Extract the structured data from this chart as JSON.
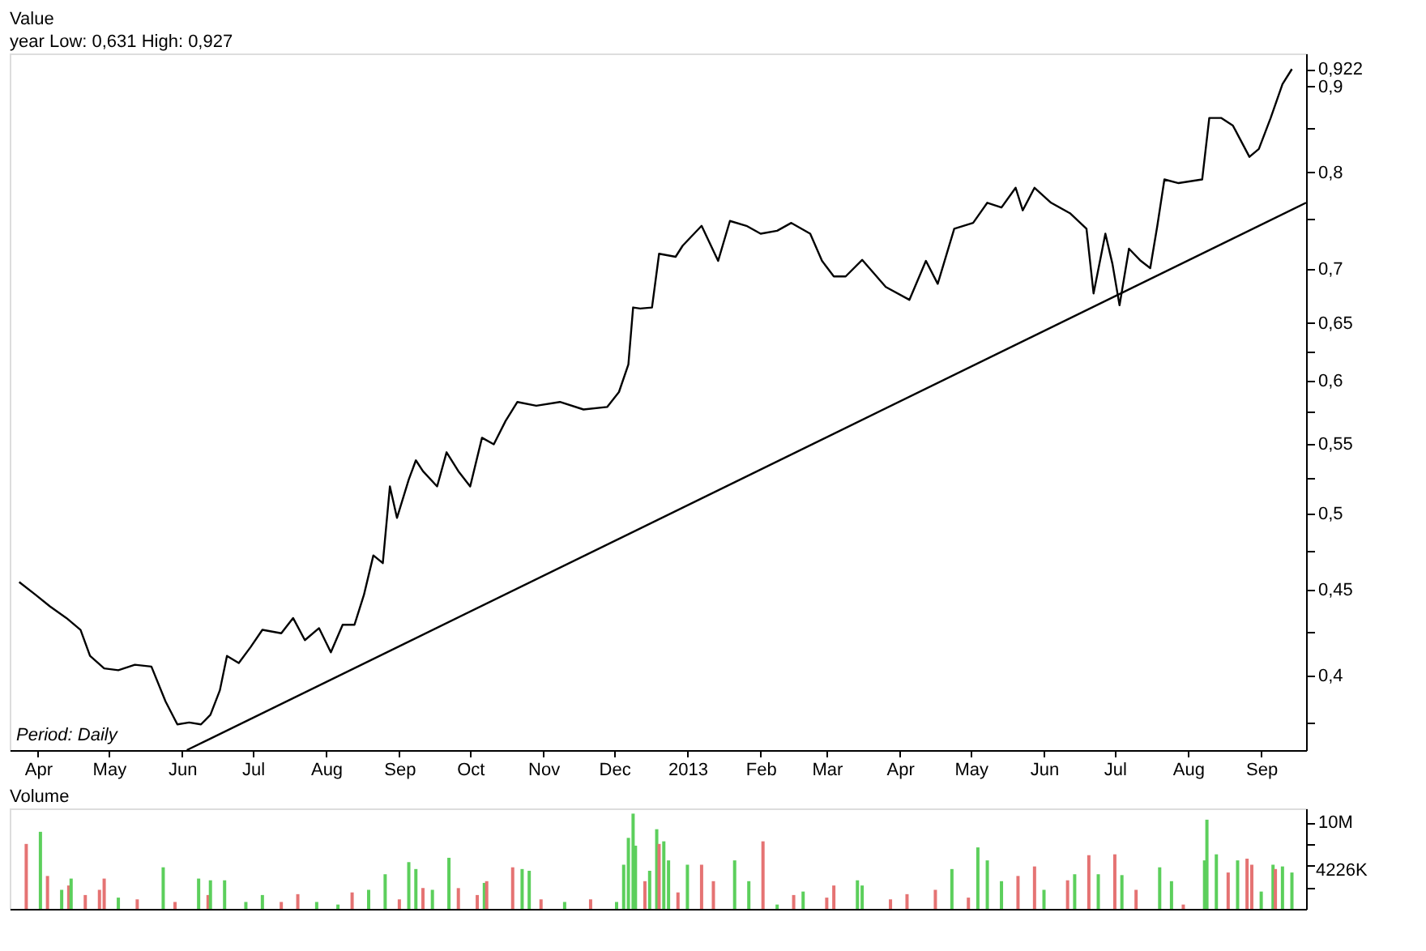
{
  "chart_data": [
    {
      "type": "line",
      "title": "Value",
      "subtitle": "year Low: 0,631 High: 0,927",
      "log": "y",
      "grid": false,
      "marker": "none",
      "line_style": "solid",
      "xlim": [
        "2012-03-20",
        "2013-09-20"
      ],
      "xticks": [
        {
          "value": "2012-04-01",
          "label": "Apr"
        },
        {
          "value": "2012-05-01",
          "label": "May"
        },
        {
          "value": "2012-06-01",
          "label": "Jun"
        },
        {
          "value": "2012-07-01",
          "label": "Jul"
        },
        {
          "value": "2012-08-01",
          "label": "Aug"
        },
        {
          "value": "2012-09-01",
          "label": "Sep"
        },
        {
          "value": "2012-10-01",
          "label": "Oct"
        },
        {
          "value": "2012-11-01",
          "label": "Nov"
        },
        {
          "value": "2012-12-01",
          "label": "Dec"
        },
        {
          "value": "2013-01-01",
          "label": "2013"
        },
        {
          "value": "2013-02-01",
          "label": "Feb"
        },
        {
          "value": "2013-03-01",
          "label": "Mar"
        },
        {
          "value": "2013-04-01",
          "label": "Apr"
        },
        {
          "value": "2013-05-01",
          "label": "May"
        },
        {
          "value": "2013-06-01",
          "label": "Jun"
        },
        {
          "value": "2013-07-01",
          "label": "Jul"
        },
        {
          "value": "2013-08-01",
          "label": "Aug"
        },
        {
          "value": "2013-09-01",
          "label": "Sep"
        }
      ],
      "ylim": [
        0.361,
        0.942
      ],
      "yticks": [
        {
          "value": 0.375,
          "label": null
        },
        {
          "value": 0.4,
          "label": "0,4"
        },
        {
          "value": 0.425,
          "label": null
        },
        {
          "value": 0.45,
          "label": "0,45"
        },
        {
          "value": 0.475,
          "label": null
        },
        {
          "value": 0.5,
          "label": "0,5"
        },
        {
          "value": 0.525,
          "label": null
        },
        {
          "value": 0.55,
          "label": "0,55"
        },
        {
          "value": 0.575,
          "label": null
        },
        {
          "value": 0.6,
          "label": "0,6"
        },
        {
          "value": 0.625,
          "label": null
        },
        {
          "value": 0.65,
          "label": "0,65"
        },
        {
          "value": 0.7,
          "label": "0,7"
        },
        {
          "value": 0.75,
          "label": null
        },
        {
          "value": 0.8,
          "label": "0,8"
        },
        {
          "value": 0.85,
          "label": null
        },
        {
          "value": 0.9,
          "label": "0,9"
        },
        {
          "value": 0.922,
          "label": "0,922"
        }
      ],
      "annotations": [
        "Period: Daily"
      ],
      "series": [
        {
          "color": "#000000",
          "x": [
            "2012-03-24",
            "2012-03-31",
            "2012-04-06",
            "2012-04-13",
            "2012-04-19",
            "2012-04-23",
            "2012-04-29",
            "2012-05-05",
            "2012-05-12",
            "2012-05-19",
            "2012-05-25",
            "2012-05-30",
            "2012-06-04",
            "2012-06-09",
            "2012-06-13",
            "2012-06-17",
            "2012-06-20",
            "2012-06-25",
            "2012-06-30",
            "2012-07-05",
            "2012-07-13",
            "2012-07-18",
            "2012-07-23",
            "2012-07-29",
            "2012-08-03",
            "2012-08-08",
            "2012-08-13",
            "2012-08-17",
            "2012-08-21",
            "2012-08-25",
            "2012-08-28",
            "2012-08-31",
            "2012-09-05",
            "2012-09-08",
            "2012-09-11",
            "2012-09-17",
            "2012-09-21",
            "2012-09-26",
            "2012-10-01",
            "2012-10-06",
            "2012-10-11",
            "2012-10-16",
            "2012-10-21",
            "2012-10-29",
            "2012-11-08",
            "2012-11-18",
            "2012-11-28",
            "2012-12-03",
            "2012-12-07",
            "2012-12-09",
            "2012-12-12",
            "2012-12-17",
            "2012-12-20",
            "2012-12-27",
            "2012-12-30",
            "2013-01-07",
            "2013-01-14",
            "2013-01-19",
            "2013-01-26",
            "2013-02-01",
            "2013-02-08",
            "2013-02-14",
            "2013-02-22",
            "2013-02-27",
            "2013-03-04",
            "2013-03-09",
            "2013-03-16",
            "2013-03-26",
            "2013-04-05",
            "2013-04-12",
            "2013-04-17",
            "2013-04-24",
            "2013-05-02",
            "2013-05-08",
            "2013-05-14",
            "2013-05-20",
            "2013-05-23",
            "2013-05-28",
            "2013-06-04",
            "2013-06-12",
            "2013-06-19",
            "2013-06-22",
            "2013-06-27",
            "2013-06-30",
            "2013-07-03",
            "2013-07-07",
            "2013-07-12",
            "2013-07-16",
            "2013-07-19",
            "2013-07-22",
            "2013-07-28",
            "2013-08-07",
            "2013-08-10",
            "2013-08-15",
            "2013-08-20",
            "2013-08-27",
            "2013-08-31",
            "2013-09-05",
            "2013-09-10",
            "2013-09-14"
          ],
          "values": [
            0.455,
            0.447,
            0.44,
            0.433,
            0.426,
            0.411,
            0.404,
            0.403,
            0.406,
            0.405,
            0.386,
            0.374,
            0.375,
            0.374,
            0.379,
            0.392,
            0.411,
            0.407,
            0.416,
            0.426,
            0.424,
            0.433,
            0.42,
            0.427,
            0.413,
            0.429,
            0.429,
            0.447,
            0.472,
            0.467,
            0.519,
            0.497,
            0.524,
            0.538,
            0.53,
            0.519,
            0.544,
            0.53,
            0.519,
            0.555,
            0.55,
            0.568,
            0.583,
            0.58,
            0.583,
            0.577,
            0.579,
            0.591,
            0.614,
            0.664,
            0.663,
            0.664,
            0.715,
            0.712,
            0.723,
            0.743,
            0.708,
            0.748,
            0.743,
            0.735,
            0.738,
            0.746,
            0.735,
            0.708,
            0.693,
            0.693,
            0.709,
            0.683,
            0.671,
            0.708,
            0.686,
            0.74,
            0.746,
            0.767,
            0.762,
            0.783,
            0.759,
            0.783,
            0.767,
            0.756,
            0.74,
            0.677,
            0.735,
            0.705,
            0.666,
            0.72,
            0.708,
            0.701,
            0.743,
            0.792,
            0.788,
            0.792,
            0.862,
            0.862,
            0.853,
            0.817,
            0.826,
            0.862,
            0.903,
            0.922
          ]
        },
        {
          "type": "line",
          "color": "#000000",
          "x": [
            "2012-06-03",
            "2013-09-20"
          ],
          "values": [
            0.361,
            0.767
          ]
        }
      ]
    },
    {
      "type": "bar",
      "title": "Volume",
      "tick_labels": "y",
      "grid": false,
      "xlim": [
        "2012-03-20",
        "2013-09-20"
      ],
      "ylim": [
        0,
        11.6
      ],
      "yticks": [
        {
          "value": 2.5,
          "label": null
        },
        {
          "value": 5,
          "label": null
        },
        {
          "value": 7.5,
          "label": null
        },
        {
          "value": 10,
          "label": "10M"
        }
      ],
      "annotations": [
        "4226K"
      ],
      "x": [
        "2012-03-27",
        "2012-04-02",
        "2012-04-05",
        "2012-04-11",
        "2012-04-14",
        "2012-04-15",
        "2012-04-21",
        "2012-04-27",
        "2012-04-29",
        "2012-05-05",
        "2012-05-13",
        "2012-05-24",
        "2012-05-29",
        "2012-06-08",
        "2012-06-12",
        "2012-06-13",
        "2012-06-19",
        "2012-06-28",
        "2012-07-05",
        "2012-07-13",
        "2012-07-20",
        "2012-07-28",
        "2012-08-06",
        "2012-08-12",
        "2012-08-19",
        "2012-08-26",
        "2012-09-01",
        "2012-09-05",
        "2012-09-08",
        "2012-09-11",
        "2012-09-15",
        "2012-09-22",
        "2012-09-26",
        "2012-10-04",
        "2012-10-07",
        "2012-10-08",
        "2012-10-19",
        "2012-10-23",
        "2012-10-26",
        "2012-10-31",
        "2012-11-10",
        "2012-11-21",
        "2012-12-02",
        "2012-12-05",
        "2012-12-07",
        "2012-12-09",
        "2012-12-10",
        "2012-12-14",
        "2012-12-16",
        "2012-12-19",
        "2012-12-20",
        "2012-12-22",
        "2012-12-24",
        "2012-12-28",
        "2013-01-01",
        "2013-01-07",
        "2013-01-12",
        "2013-01-21",
        "2013-01-27",
        "2013-02-02",
        "2013-02-08",
        "2013-02-15",
        "2013-02-19",
        "2013-03-01",
        "2013-03-04",
        "2013-03-14",
        "2013-03-16",
        "2013-03-28",
        "2013-04-04",
        "2013-04-16",
        "2013-04-23",
        "2013-04-30",
        "2013-05-04",
        "2013-05-08",
        "2013-05-14",
        "2013-05-21",
        "2013-05-28",
        "2013-06-01",
        "2013-06-11",
        "2013-06-14",
        "2013-06-20",
        "2013-06-24",
        "2013-07-01",
        "2013-07-04",
        "2013-07-10",
        "2013-07-20",
        "2013-07-25",
        "2013-07-30",
        "2013-08-08",
        "2013-08-09",
        "2013-08-13",
        "2013-08-18",
        "2013-08-22",
        "2013-08-26",
        "2013-08-28",
        "2013-09-01",
        "2013-09-06",
        "2013-09-07",
        "2013-09-10",
        "2013-09-14"
      ],
      "values": [
        7.5,
        8.9,
        3.8,
        2.2,
        2.7,
        3.5,
        1.6,
        2.2,
        3.5,
        1.3,
        1.1,
        4.8,
        0.8,
        3.5,
        1.6,
        3.3,
        3.3,
        0.8,
        1.6,
        0.8,
        1.7,
        0.8,
        0.5,
        1.9,
        2.2,
        4.0,
        1.1,
        5.4,
        4.6,
        2.4,
        2.2,
        5.9,
        2.4,
        1.6,
        3.0,
        3.2,
        4.8,
        4.6,
        4.4,
        1.1,
        0.8,
        1.1,
        0.8,
        5.1,
        8.2,
        11.0,
        7.3,
        3.2,
        4.4,
        9.2,
        7.5,
        7.8,
        5.6,
        1.9,
        5.1,
        5.1,
        3.2,
        5.6,
        3.2,
        7.8,
        0.5,
        1.6,
        2.0,
        1.3,
        2.7,
        3.3,
        2.7,
        1.1,
        1.7,
        2.2,
        4.6,
        1.3,
        7.1,
        5.6,
        3.2,
        3.8,
        4.9,
        2.2,
        3.3,
        4.0,
        6.2,
        4.0,
        6.3,
        3.9,
        2.2,
        4.8,
        3.2,
        0.5,
        5.6,
        10.3,
        6.3,
        4.2,
        5.6,
        5.8,
        5.1,
        2.0,
        5.1,
        4.6,
        4.9,
        4.2
      ],
      "colors": [
        "#e57373",
        "#5ccf5c",
        "#e57373",
        "#5ccf5c",
        "#e57373",
        "#5ccf5c",
        "#e57373",
        "#e57373",
        "#e57373",
        "#5ccf5c",
        "#e57373",
        "#5ccf5c",
        "#e57373",
        "#5ccf5c",
        "#e57373",
        "#5ccf5c",
        "#5ccf5c",
        "#5ccf5c",
        "#5ccf5c",
        "#e57373",
        "#e57373",
        "#5ccf5c",
        "#5ccf5c",
        "#e57373",
        "#5ccf5c",
        "#5ccf5c",
        "#e57373",
        "#5ccf5c",
        "#5ccf5c",
        "#e57373",
        "#5ccf5c",
        "#5ccf5c",
        "#e57373",
        "#e57373",
        "#5ccf5c",
        "#e57373",
        "#e57373",
        "#5ccf5c",
        "#5ccf5c",
        "#e57373",
        "#5ccf5c",
        "#e57373",
        "#5ccf5c",
        "#5ccf5c",
        "#5ccf5c",
        "#5ccf5c",
        "#5ccf5c",
        "#e57373",
        "#5ccf5c",
        "#5ccf5c",
        "#e57373",
        "#5ccf5c",
        "#5ccf5c",
        "#e57373",
        "#5ccf5c",
        "#e57373",
        "#e57373",
        "#5ccf5c",
        "#5ccf5c",
        "#e57373",
        "#5ccf5c",
        "#e57373",
        "#5ccf5c",
        "#e57373",
        "#e57373",
        "#5ccf5c",
        "#5ccf5c",
        "#e57373",
        "#e57373",
        "#e57373",
        "#5ccf5c",
        "#e57373",
        "#5ccf5c",
        "#5ccf5c",
        "#5ccf5c",
        "#e57373",
        "#e57373",
        "#5ccf5c",
        "#e57373",
        "#5ccf5c",
        "#e57373",
        "#5ccf5c",
        "#e57373",
        "#5ccf5c",
        "#e57373",
        "#5ccf5c",
        "#5ccf5c",
        "#e57373",
        "#5ccf5c",
        "#5ccf5c",
        "#5ccf5c",
        "#e57373",
        "#5ccf5c",
        "#e57373",
        "#e57373",
        "#5ccf5c",
        "#5ccf5c",
        "#e57373",
        "#5ccf5c",
        "#5ccf5c"
      ]
    }
  ]
}
